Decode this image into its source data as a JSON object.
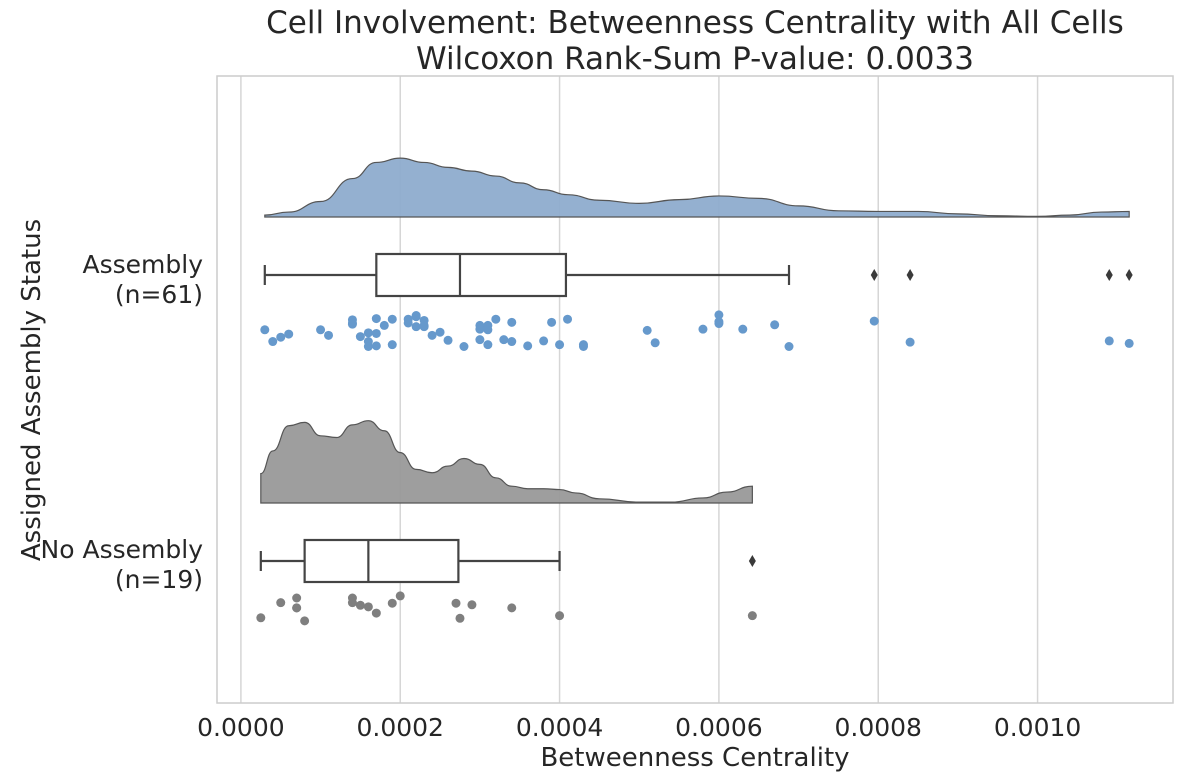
{
  "chart_data": {
    "type": "raincloud",
    "title": "Cell Involvement: Betweenness Centrality with All Cells",
    "subtitle": "Wilcoxon Rank-Sum P-value: 0.0033",
    "xlabel": "Betweenness Centrality",
    "ylabel": "Assigned Assembly Status",
    "xlim": [
      -3e-05,
      0.00117
    ],
    "xticks": [
      0.0,
      0.0002,
      0.0004,
      0.0006,
      0.0008,
      0.001
    ],
    "xtick_labels": [
      "0.0000",
      "0.0002",
      "0.0004",
      "0.0006",
      "0.0008",
      "0.0010"
    ],
    "grid": true,
    "groups": [
      {
        "label_line1": "Assembly",
        "label_line2": "(n=61)",
        "color": "#8eacce",
        "point_color": "#6699cc",
        "box": {
          "whisker_low": 3e-05,
          "q1": 0.00017,
          "median": 0.000275,
          "q3": 0.000408,
          "whisker_high": 0.000688
        },
        "outliers": [
          0.000795,
          0.00084,
          0.00109,
          0.001115
        ],
        "density": [
          {
            "x": 3e-05,
            "d": 0.03
          },
          {
            "x": 6e-05,
            "d": 0.08
          },
          {
            "x": 0.0001,
            "d": 0.25
          },
          {
            "x": 0.00014,
            "d": 0.62
          },
          {
            "x": 0.00017,
            "d": 0.88
          },
          {
            "x": 0.0002,
            "d": 0.95
          },
          {
            "x": 0.00023,
            "d": 0.88
          },
          {
            "x": 0.00026,
            "d": 0.8
          },
          {
            "x": 0.00029,
            "d": 0.74
          },
          {
            "x": 0.00032,
            "d": 0.66
          },
          {
            "x": 0.00035,
            "d": 0.55
          },
          {
            "x": 0.00038,
            "d": 0.44
          },
          {
            "x": 0.00041,
            "d": 0.36
          },
          {
            "x": 0.00045,
            "d": 0.27
          },
          {
            "x": 0.0005,
            "d": 0.22
          },
          {
            "x": 0.00055,
            "d": 0.28
          },
          {
            "x": 0.0006,
            "d": 0.34
          },
          {
            "x": 0.00065,
            "d": 0.3
          },
          {
            "x": 0.0007,
            "d": 0.18
          },
          {
            "x": 0.00075,
            "d": 0.1
          },
          {
            "x": 0.0008,
            "d": 0.09
          },
          {
            "x": 0.00085,
            "d": 0.09
          },
          {
            "x": 0.0009,
            "d": 0.05
          },
          {
            "x": 0.00095,
            "d": 0.02
          },
          {
            "x": 0.001,
            "d": 0.01
          },
          {
            "x": 0.00104,
            "d": 0.03
          },
          {
            "x": 0.00108,
            "d": 0.08
          },
          {
            "x": 0.001115,
            "d": 0.09
          }
        ],
        "points": [
          {
            "x": 3e-05,
            "j": 0.48
          },
          {
            "x": 4e-05,
            "j": 0.67
          },
          {
            "x": 5e-05,
            "j": 0.6
          },
          {
            "x": 6e-05,
            "j": 0.55
          },
          {
            "x": 0.0001,
            "j": 0.48
          },
          {
            "x": 0.00011,
            "j": 0.57
          },
          {
            "x": 0.00014,
            "j": 0.32
          },
          {
            "x": 0.00014,
            "j": 0.37
          },
          {
            "x": 0.00014,
            "j": 0.39
          },
          {
            "x": 0.00015,
            "j": 0.59
          },
          {
            "x": 0.00016,
            "j": 0.67
          },
          {
            "x": 0.00016,
            "j": 0.53
          },
          {
            "x": 0.00017,
            "j": 0.54
          },
          {
            "x": 0.00016,
            "j": 0.75
          },
          {
            "x": 0.00017,
            "j": 0.3
          },
          {
            "x": 0.00017,
            "j": 0.74
          },
          {
            "x": 0.00018,
            "j": 0.41
          },
          {
            "x": 0.00019,
            "j": 0.31
          },
          {
            "x": 0.00019,
            "j": 0.72
          },
          {
            "x": 0.00021,
            "j": 0.31
          },
          {
            "x": 0.00021,
            "j": 0.37
          },
          {
            "x": 0.00022,
            "j": 0.25
          },
          {
            "x": 0.00022,
            "j": 0.27
          },
          {
            "x": 0.00022,
            "j": 0.43
          },
          {
            "x": 0.00023,
            "j": 0.43
          },
          {
            "x": 0.00023,
            "j": 0.33
          },
          {
            "x": 0.00023,
            "j": 0.41
          },
          {
            "x": 0.00024,
            "j": 0.57
          },
          {
            "x": 0.00025,
            "j": 0.52
          },
          {
            "x": 0.00026,
            "j": 0.65
          },
          {
            "x": 0.00028,
            "j": 0.75
          },
          {
            "x": 0.0003,
            "j": 0.41
          },
          {
            "x": 0.0003,
            "j": 0.47
          },
          {
            "x": 0.0003,
            "j": 0.64
          },
          {
            "x": 0.00031,
            "j": 0.41
          },
          {
            "x": 0.00031,
            "j": 0.48
          },
          {
            "x": 0.00031,
            "j": 0.72
          },
          {
            "x": 0.00032,
            "j": 0.31
          },
          {
            "x": 0.00033,
            "j": 0.64
          },
          {
            "x": 0.00034,
            "j": 0.67
          },
          {
            "x": 0.00034,
            "j": 0.36
          },
          {
            "x": 0.00036,
            "j": 0.74
          },
          {
            "x": 0.00038,
            "j": 0.66
          },
          {
            "x": 0.00039,
            "j": 0.36
          },
          {
            "x": 0.0004,
            "j": 0.72
          },
          {
            "x": 0.00041,
            "j": 0.31
          },
          {
            "x": 0.00043,
            "j": 0.72
          },
          {
            "x": 0.00043,
            "j": 0.75
          },
          {
            "x": 0.00051,
            "j": 0.49
          },
          {
            "x": 0.00052,
            "j": 0.69
          },
          {
            "x": 0.00058,
            "j": 0.47
          },
          {
            "x": 0.0006,
            "j": 0.24
          },
          {
            "x": 0.0006,
            "j": 0.35
          },
          {
            "x": 0.0006,
            "j": 0.38
          },
          {
            "x": 0.00063,
            "j": 0.47
          },
          {
            "x": 0.00067,
            "j": 0.4
          },
          {
            "x": 0.000688,
            "j": 0.75
          },
          {
            "x": 0.000795,
            "j": 0.34
          },
          {
            "x": 0.00084,
            "j": 0.68
          },
          {
            "x": 0.00109,
            "j": 0.66
          },
          {
            "x": 0.001115,
            "j": 0.7
          }
        ]
      },
      {
        "label_line1": "No Assembly",
        "label_line2": "(n=19)",
        "color": "#999999",
        "point_color": "#7f7f7f",
        "box": {
          "whisker_low": 2.5e-05,
          "q1": 8e-05,
          "median": 0.00016,
          "q3": 0.000273,
          "whisker_high": 0.0004
        },
        "outliers": [
          0.000642
        ],
        "density": [
          {
            "x": 2.5e-05,
            "d": 0.35
          },
          {
            "x": 4e-05,
            "d": 0.62
          },
          {
            "x": 6e-05,
            "d": 0.92
          },
          {
            "x": 8e-05,
            "d": 0.96
          },
          {
            "x": 0.0001,
            "d": 0.8
          },
          {
            "x": 0.00012,
            "d": 0.78
          },
          {
            "x": 0.00014,
            "d": 0.93
          },
          {
            "x": 0.00016,
            "d": 0.98
          },
          {
            "x": 0.00018,
            "d": 0.86
          },
          {
            "x": 0.0002,
            "d": 0.6
          },
          {
            "x": 0.00022,
            "d": 0.4
          },
          {
            "x": 0.00024,
            "d": 0.36
          },
          {
            "x": 0.00026,
            "d": 0.44
          },
          {
            "x": 0.00028,
            "d": 0.53
          },
          {
            "x": 0.0003,
            "d": 0.46
          },
          {
            "x": 0.00032,
            "d": 0.3
          },
          {
            "x": 0.00034,
            "d": 0.2
          },
          {
            "x": 0.00036,
            "d": 0.17
          },
          {
            "x": 0.00038,
            "d": 0.17
          },
          {
            "x": 0.0004,
            "d": 0.16
          },
          {
            "x": 0.00042,
            "d": 0.12
          },
          {
            "x": 0.00045,
            "d": 0.05
          },
          {
            "x": 0.0005,
            "d": 0.01
          },
          {
            "x": 0.00054,
            "d": 0.01
          },
          {
            "x": 0.00058,
            "d": 0.06
          },
          {
            "x": 0.00061,
            "d": 0.13
          },
          {
            "x": 0.000642,
            "d": 0.2
          }
        ],
        "points": [
          {
            "x": 2.5e-05,
            "j": 0.63
          },
          {
            "x": 5e-05,
            "j": 0.34
          },
          {
            "x": 7e-05,
            "j": 0.44
          },
          {
            "x": 7e-05,
            "j": 0.25
          },
          {
            "x": 7e-05,
            "j": 0.44
          },
          {
            "x": 8e-05,
            "j": 0.69
          },
          {
            "x": 0.00014,
            "j": 0.34
          },
          {
            "x": 0.00014,
            "j": 0.25
          },
          {
            "x": 0.00015,
            "j": 0.39
          },
          {
            "x": 0.00016,
            "j": 0.42
          },
          {
            "x": 0.00017,
            "j": 0.54
          },
          {
            "x": 0.00019,
            "j": 0.35
          },
          {
            "x": 0.0002,
            "j": 0.21
          },
          {
            "x": 0.00027,
            "j": 0.35
          },
          {
            "x": 0.000275,
            "j": 0.64
          },
          {
            "x": 0.00029,
            "j": 0.38
          },
          {
            "x": 0.00034,
            "j": 0.44
          },
          {
            "x": 0.0004,
            "j": 0.59
          },
          {
            "x": 0.000642,
            "j": 0.59
          }
        ]
      }
    ]
  }
}
